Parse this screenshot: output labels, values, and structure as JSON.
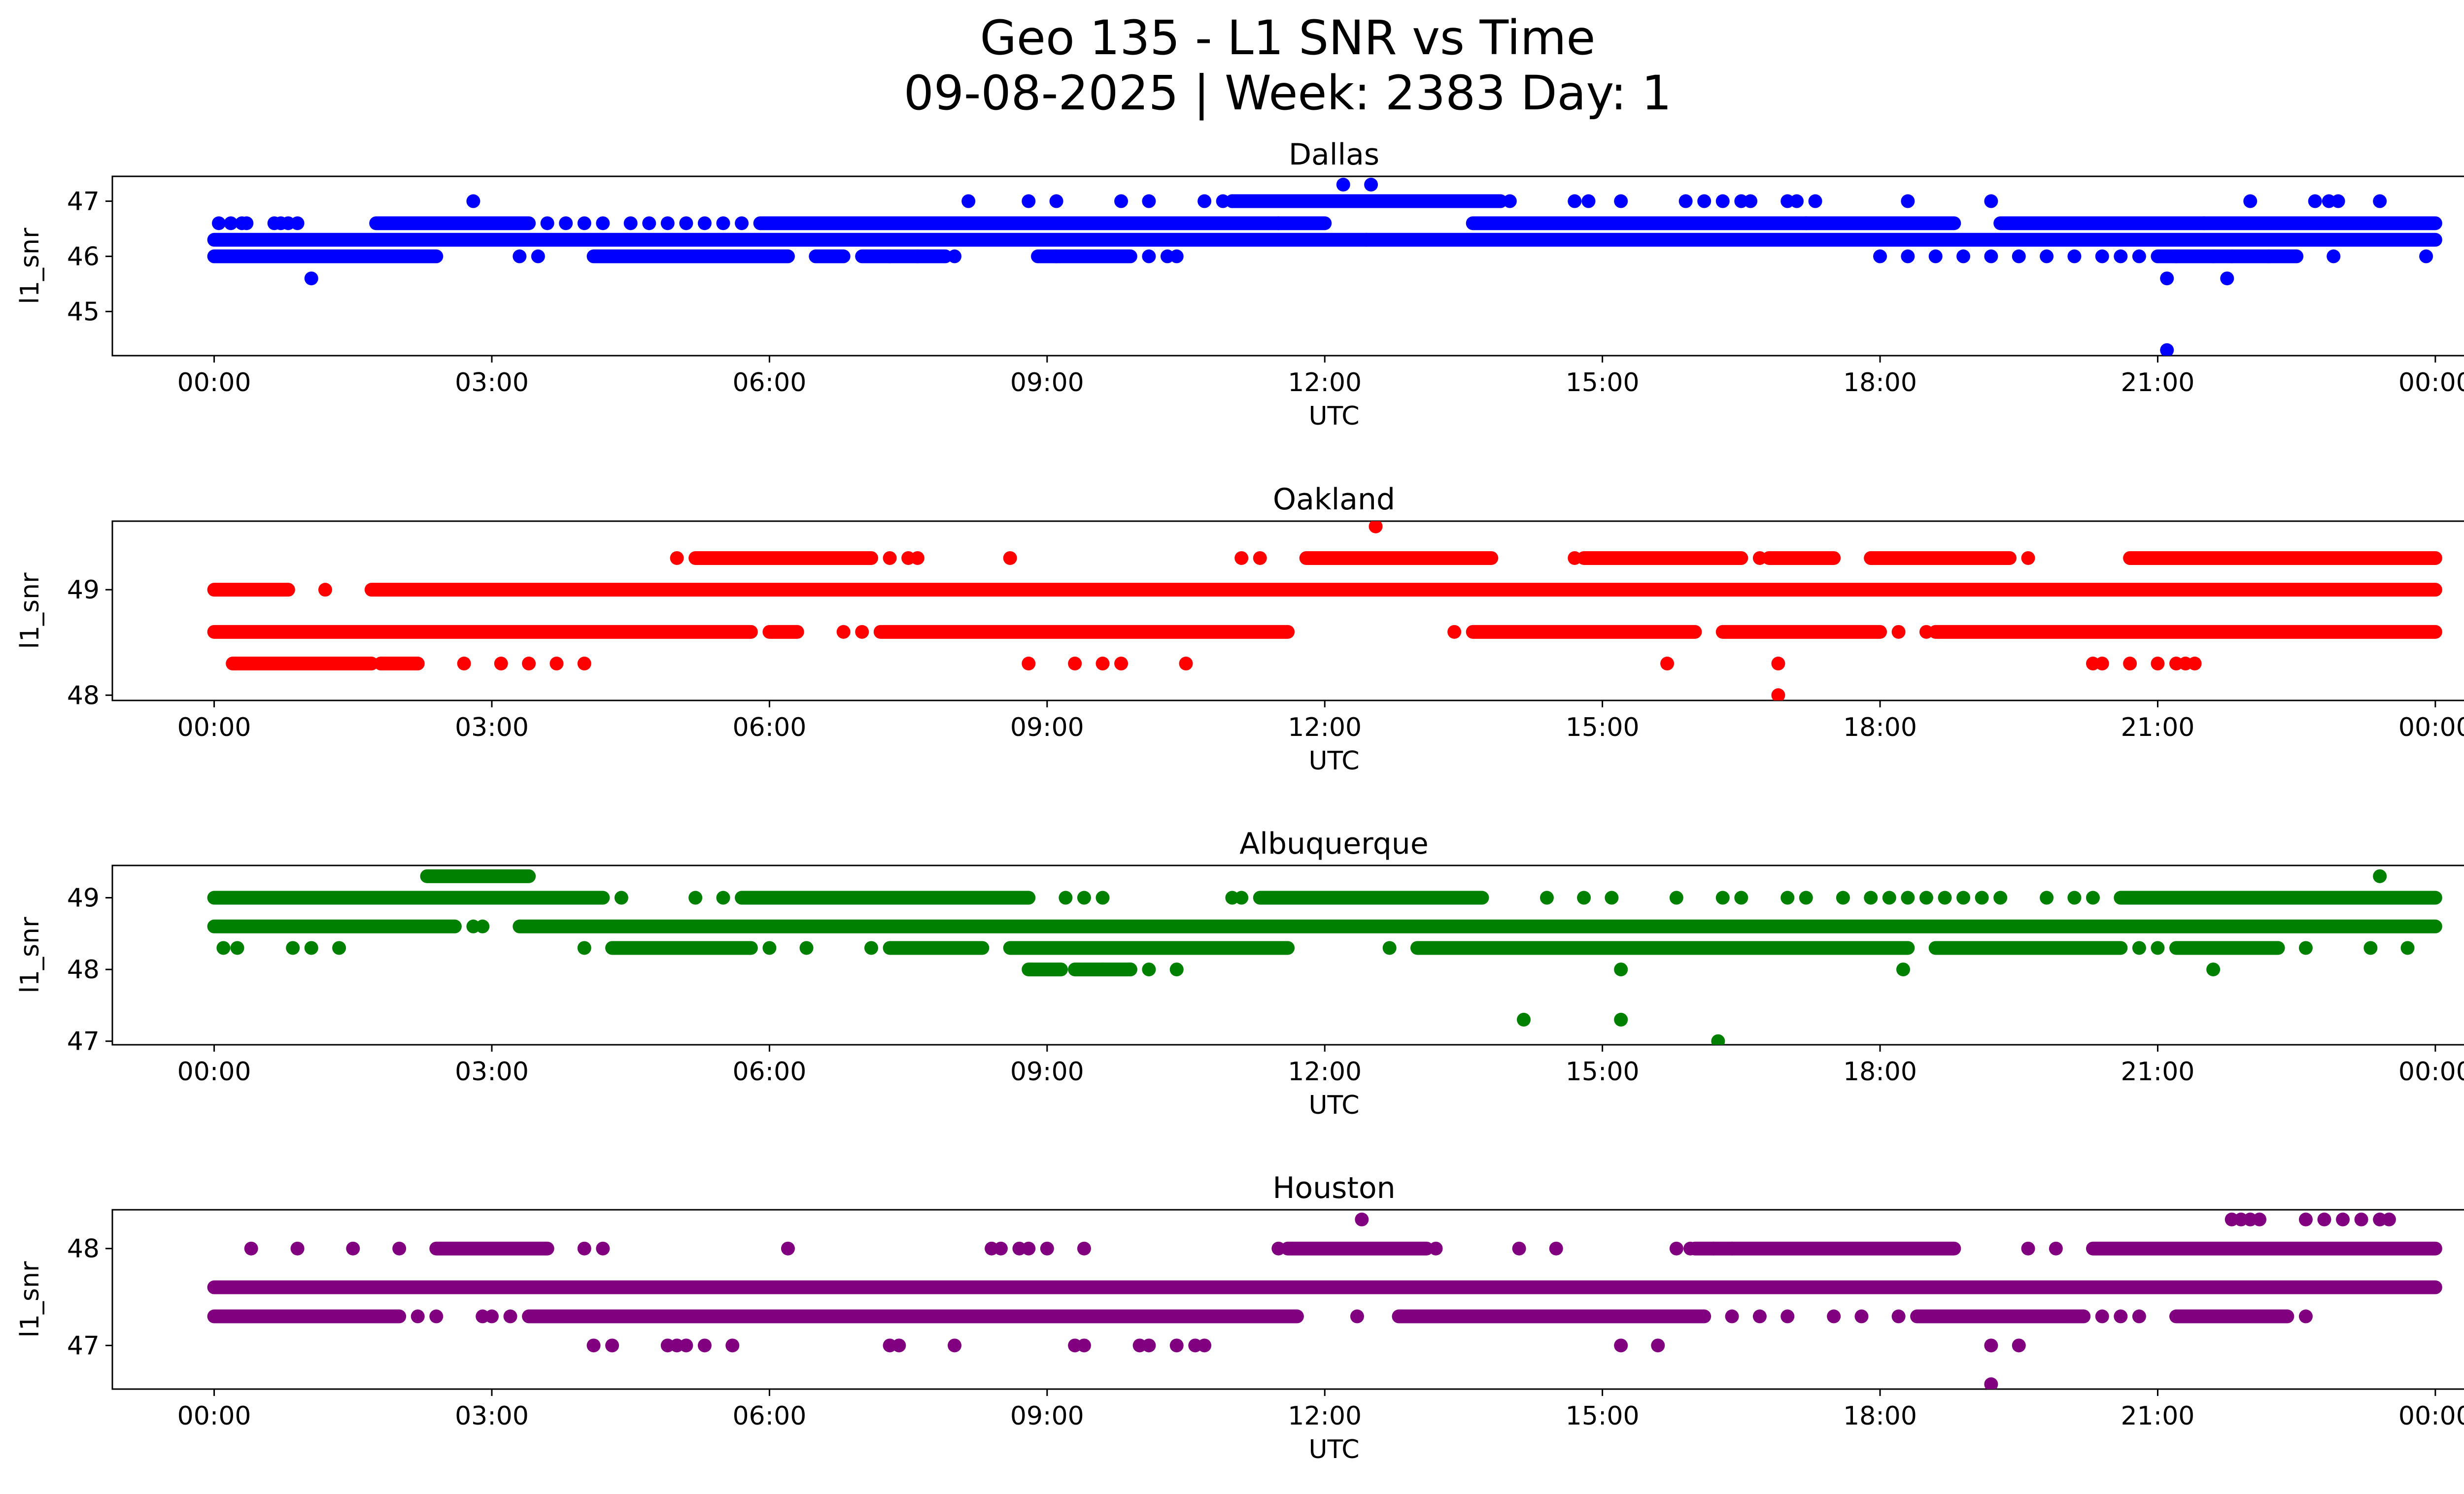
{
  "figure": {
    "title_line1": "Geo 135 - L1 SNR vs Time",
    "title_line2": "09-08-2025 | Week: 2383 Day: 1"
  },
  "chart_data": [
    {
      "type": "scatter",
      "title": "Dallas",
      "xlabel": "UTC",
      "ylabel": "l1_snr",
      "color": "#0000ff",
      "x_range_hours": [
        -1.1,
        25.3
      ],
      "ylim": [
        44.2,
        47.45
      ],
      "x_ticks": [
        "00:00",
        "03:00",
        "06:00",
        "09:00",
        "12:00",
        "15:00",
        "18:00",
        "21:00",
        "00:00"
      ],
      "y_ticks": [
        45,
        46,
        47
      ],
      "levels": [
        {
          "y": 46.3,
          "ranges": [
            [
              0,
              24
            ]
          ],
          "points": []
        },
        {
          "y": 46.6,
          "ranges": [
            [
              1.75,
              3.4
            ],
            [
              5.9,
              11.5
            ],
            [
              11.5,
              12.0
            ],
            [
              13.6,
              17.2
            ],
            [
              17.2,
              18.8
            ],
            [
              19.3,
              21.5
            ],
            [
              21.5,
              24.0
            ]
          ],
          "points": [
            0.05,
            0.18,
            0.3,
            0.35,
            0.65,
            0.72,
            0.8,
            0.9,
            3.6,
            3.8,
            4.0,
            4.2,
            4.5,
            4.7,
            4.9,
            5.1,
            5.3,
            5.5,
            5.7
          ]
        },
        {
          "y": 46.0,
          "ranges": [
            [
              0,
              2.4
            ],
            [
              4.1,
              6.2
            ],
            [
              6.5,
              6.8
            ],
            [
              7.0,
              7.9
            ],
            [
              8.9,
              9.9
            ],
            [
              21.0,
              22.5
            ]
          ],
          "points": [
            3.3,
            3.5,
            7.3,
            7.6,
            8.0,
            9.1,
            10.1,
            10.3,
            10.4,
            18.0,
            18.3,
            18.6,
            18.9,
            19.2,
            19.5,
            19.8,
            20.1,
            20.4,
            20.6,
            20.8,
            21.2,
            21.6,
            21.8,
            22.2,
            22.9,
            23.9
          ]
        },
        {
          "y": 47.0,
          "ranges": [
            [
              11.0,
              13.9
            ]
          ],
          "points": [
            2.8,
            8.15,
            8.8,
            9.1,
            9.8,
            10.1,
            10.7,
            10.9,
            11.0,
            14.0,
            14.7,
            14.85,
            15.2,
            15.9,
            16.1,
            16.3,
            16.5,
            16.6,
            17.0,
            17.1,
            17.3,
            18.3,
            19.2,
            22.0,
            22.7,
            22.85,
            22.95,
            23.4
          ]
        },
        {
          "y": 46.3,
          "ranges": [],
          "points": [
            12.45
          ]
        },
        {
          "y": 45.6,
          "ranges": [],
          "points": [
            1.05,
            21.1,
            21.75
          ]
        },
        {
          "y": 47.3,
          "ranges": [],
          "points": [
            12.2,
            12.5
          ]
        },
        {
          "y": 44.3,
          "ranges": [],
          "points": [
            21.1
          ]
        }
      ]
    },
    {
      "type": "scatter",
      "title": "Oakland",
      "xlabel": "UTC",
      "ylabel": "l1_snr",
      "color": "#ff0000",
      "x_range_hours": [
        -1.1,
        25.3
      ],
      "ylim": [
        47.95,
        49.65
      ],
      "x_ticks": [
        "00:00",
        "03:00",
        "06:00",
        "09:00",
        "12:00",
        "15:00",
        "18:00",
        "21:00",
        "00:00"
      ],
      "y_ticks": [
        48,
        49
      ],
      "levels": [
        {
          "y": 49.0,
          "ranges": [
            [
              0,
              0.8
            ],
            [
              1.7,
              24.0
            ]
          ],
          "points": [
            1.2
          ]
        },
        {
          "y": 48.6,
          "ranges": [
            [
              0,
              5.8
            ],
            [
              6.0,
              6.3
            ],
            [
              7.2,
              11.6
            ],
            [
              13.6,
              16.0
            ],
            [
              16.3,
              18.0
            ],
            [
              18.6,
              24.0
            ]
          ],
          "points": [
            6.8,
            7.0,
            13.4,
            18.2,
            18.5
          ]
        },
        {
          "y": 49.3,
          "ranges": [
            [
              5.2,
              7.1
            ],
            [
              11.8,
              13.8
            ],
            [
              14.8,
              16.5
            ],
            [
              16.8,
              17.5
            ],
            [
              17.9,
              19.4
            ],
            [
              20.7,
              24.0
            ]
          ],
          "points": [
            5.0,
            7.3,
            7.5,
            7.6,
            8.6,
            11.1,
            11.3,
            14.7,
            16.7,
            17.9,
            19.6
          ]
        },
        {
          "y": 48.3,
          "ranges": [
            [
              0.2,
              1.7
            ],
            [
              1.8,
              2.2
            ]
          ],
          "points": [
            0.3,
            2.7,
            3.1,
            3.4,
            3.7,
            4.0,
            8.8,
            9.3,
            9.6,
            9.8,
            10.5,
            15.7,
            16.9,
            20.3,
            20.4,
            20.7,
            21.0,
            21.2,
            21.3,
            21.4
          ]
        },
        {
          "y": 49.6,
          "ranges": [],
          "points": [
            12.55
          ]
        },
        {
          "y": 48.0,
          "ranges": [],
          "points": [
            16.9
          ]
        }
      ]
    },
    {
      "type": "scatter",
      "title": "Albuquerque",
      "xlabel": "UTC",
      "ylabel": "l1_snr",
      "color": "#008000",
      "x_range_hours": [
        -1.1,
        25.3
      ],
      "ylim": [
        46.95,
        49.45
      ],
      "x_ticks": [
        "00:00",
        "03:00",
        "06:00",
        "09:00",
        "12:00",
        "15:00",
        "18:00",
        "21:00",
        "00:00"
      ],
      "y_ticks": [
        47,
        48,
        49
      ],
      "levels": [
        {
          "y": 48.6,
          "ranges": [
            [
              0,
              2.6
            ],
            [
              3.3,
              24.0
            ]
          ],
          "points": [
            2.8,
            2.9
          ]
        },
        {
          "y": 49.0,
          "ranges": [
            [
              0,
              4.2
            ],
            [
              5.7,
              8.8
            ],
            [
              11.3,
              13.7
            ],
            [
              20.6,
              24.0
            ]
          ],
          "points": [
            4.4,
            5.2,
            5.5,
            9.2,
            9.4,
            9.6,
            11.0,
            11.1,
            14.4,
            14.8,
            15.1,
            15.8,
            16.3,
            16.5,
            17.0,
            17.2,
            17.6,
            17.9,
            18.1,
            18.3,
            18.5,
            18.7,
            18.9,
            19.1,
            19.3,
            19.8,
            20.1,
            20.3
          ]
        },
        {
          "y": 48.3,
          "ranges": [
            [
              4.3,
              5.8
            ],
            [
              7.3,
              8.3
            ],
            [
              8.6,
              11.6
            ],
            [
              13.0,
              18.3
            ],
            [
              18.6,
              20.6
            ],
            [
              21.2,
              22.3
            ]
          ],
          "points": [
            0.1,
            0.25,
            0.85,
            1.05,
            1.35,
            4.0,
            6.0,
            6.4,
            7.1,
            12.7,
            13.3,
            20.8,
            21.0,
            22.6,
            23.3,
            23.7
          ]
        },
        {
          "y": 48.0,
          "ranges": [
            [
              8.8,
              9.15
            ],
            [
              9.3,
              9.9
            ]
          ],
          "points": [
            9.6,
            9.9,
            10.1,
            10.4,
            15.2,
            18.25,
            21.6
          ]
        },
        {
          "y": 49.3,
          "ranges": [
            [
              2.3,
              3.4
            ]
          ],
          "points": [
            23.4
          ]
        },
        {
          "y": 47.3,
          "ranges": [],
          "points": [
            14.15,
            15.2
          ]
        },
        {
          "y": 47.0,
          "ranges": [],
          "points": [
            16.25
          ]
        }
      ]
    },
    {
      "type": "scatter",
      "title": "Houston",
      "xlabel": "UTC",
      "ylabel": "l1_snr",
      "color": "#800080",
      "x_range_hours": [
        -1.1,
        25.3
      ],
      "ylim": [
        46.55,
        48.4
      ],
      "x_ticks": [
        "00:00",
        "03:00",
        "06:00",
        "09:00",
        "12:00",
        "15:00",
        "18:00",
        "21:00",
        "00:00"
      ],
      "y_ticks": [
        47,
        48
      ],
      "levels": [
        {
          "y": 47.6,
          "ranges": [
            [
              0,
              24.0
            ]
          ],
          "points": []
        },
        {
          "y": 47.3,
          "ranges": [
            [
              0,
              2.0
            ],
            [
              3.4,
              11.7
            ],
            [
              12.8,
              16.1
            ],
            [
              18.4,
              20.2
            ],
            [
              21.2,
              22.4
            ]
          ],
          "points": [
            2.2,
            2.4,
            2.9,
            3.0,
            3.2,
            12.35,
            16.4,
            16.7,
            17.0,
            17.5,
            17.8,
            18.2,
            20.4,
            20.6,
            20.8,
            22.6
          ]
        },
        {
          "y": 48.0,
          "ranges": [
            [
              2.4,
              3.6
            ],
            [
              11.6,
              13.1
            ],
            [
              16.0,
              18.8
            ],
            [
              20.3,
              24.0
            ]
          ],
          "points": [
            0.4,
            0.9,
            1.5,
            2.0,
            4.0,
            4.2,
            6.2,
            8.4,
            8.5,
            8.7,
            8.8,
            9.0,
            9.4,
            11.5,
            13.2,
            14.1,
            14.5,
            15.8,
            15.95,
            16.2,
            16.4,
            19.6,
            19.9
          ]
        },
        {
          "y": 47.0,
          "ranges": [],
          "points": [
            4.1,
            4.3,
            4.9,
            5.0,
            5.1,
            5.3,
            5.6,
            7.3,
            7.4,
            8.0,
            9.3,
            9.4,
            10.0,
            10.1,
            10.4,
            10.6,
            10.7,
            15.2,
            15.6,
            19.2,
            19.5
          ]
        },
        {
          "y": 48.3,
          "ranges": [],
          "points": [
            12.4,
            21.8,
            21.9,
            22.0,
            22.1,
            22.6,
            22.8,
            23.0,
            23.2,
            23.4,
            23.5
          ]
        },
        {
          "y": 46.6,
          "ranges": [],
          "points": [
            19.2
          ]
        }
      ]
    }
  ]
}
